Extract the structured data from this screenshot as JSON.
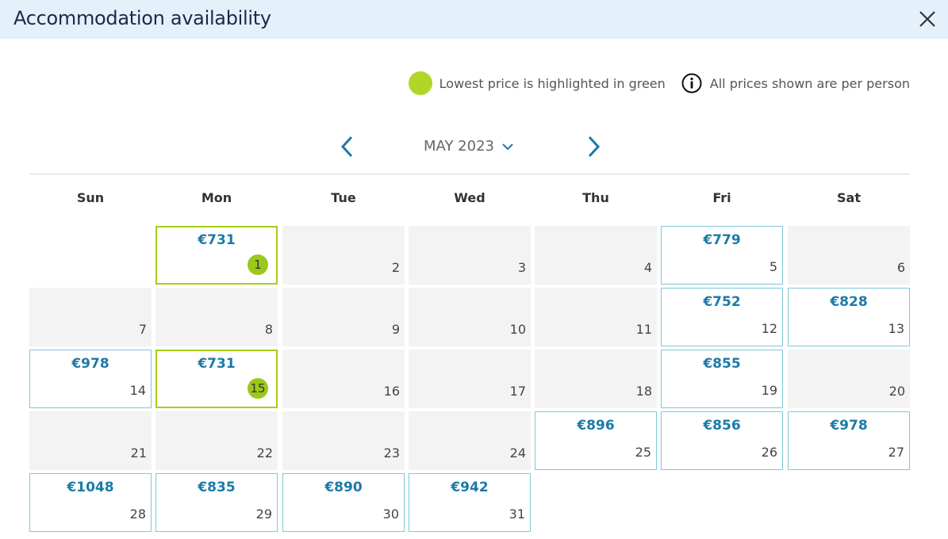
{
  "header": {
    "title": "Accommodation availability"
  },
  "legend": {
    "lowest_text": "Lowest price is highlighted in green",
    "info_text": "All prices shown are per person",
    "lowest_color": "#b2d627",
    "info_icon": "info-icon"
  },
  "nav": {
    "month_label": "MAY 2023",
    "prev_icon": "chevron-left-icon",
    "next_icon": "chevron-right-icon"
  },
  "weekdays": [
    "Sun",
    "Mon",
    "Tue",
    "Wed",
    "Thu",
    "Fri",
    "Sat"
  ],
  "colors": {
    "price_text": "#1b7aa8",
    "price_border": "#7fc8d8",
    "lowest_border": "#a4cf14",
    "unavailable_bg": "#f3f3f3"
  },
  "weeks": [
    [
      null,
      {
        "day": "1",
        "price": "€731",
        "lowest": true
      },
      {
        "day": "2"
      },
      {
        "day": "3"
      },
      {
        "day": "4"
      },
      {
        "day": "5",
        "price": "€779"
      },
      {
        "day": "6"
      }
    ],
    [
      {
        "day": "7"
      },
      {
        "day": "8"
      },
      {
        "day": "9"
      },
      {
        "day": "10"
      },
      {
        "day": "11"
      },
      {
        "day": "12",
        "price": "€752"
      },
      {
        "day": "13",
        "price": "€828"
      }
    ],
    [
      {
        "day": "14",
        "price": "€978"
      },
      {
        "day": "15",
        "price": "€731",
        "lowest": true
      },
      {
        "day": "16"
      },
      {
        "day": "17"
      },
      {
        "day": "18"
      },
      {
        "day": "19",
        "price": "€855"
      },
      {
        "day": "20"
      }
    ],
    [
      {
        "day": "21"
      },
      {
        "day": "22"
      },
      {
        "day": "23"
      },
      {
        "day": "24"
      },
      {
        "day": "25",
        "price": "€896"
      },
      {
        "day": "26",
        "price": "€856"
      },
      {
        "day": "27",
        "price": "€978"
      }
    ],
    [
      {
        "day": "28",
        "price": "€1048"
      },
      {
        "day": "29",
        "price": "€835"
      },
      {
        "day": "30",
        "price": "€890"
      },
      {
        "day": "31",
        "price": "€942"
      },
      null,
      null,
      null
    ]
  ]
}
